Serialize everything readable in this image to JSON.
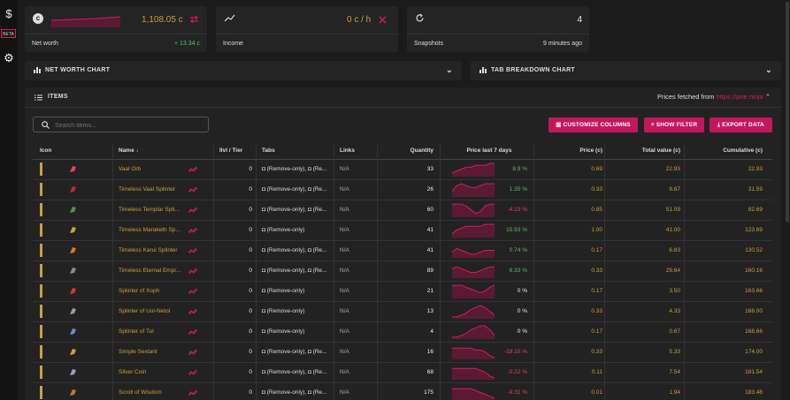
{
  "sidebar": {
    "dollar_icon": "$",
    "badge": "BETA",
    "gear_icon": "⚙"
  },
  "networth": {
    "value": "1,108.05 c",
    "label": "Net worth",
    "delta": "+ 13.34 c",
    "coin": "c"
  },
  "income": {
    "value": "0 c / h",
    "label": "Income"
  },
  "snapshots": {
    "value": "4",
    "label": "Snapshots",
    "time": "9 minutes ago"
  },
  "panels": {
    "networth_chart": "NET WORTH CHART",
    "tab_chart": "TAB BREAKDOWN CHART"
  },
  "items": {
    "title": "ITEMS",
    "prices_prefix": "Prices fetched from",
    "prices_link": "https://poe.ninja",
    "search_placeholder": "Search items...",
    "buttons": {
      "customize": "CUSTOMIZE COLUMNS",
      "filter": "SHOW FILTER",
      "export": "EXPORT DATA"
    },
    "columns": [
      "Icon",
      "Name ↓",
      "Ilvl / Tier",
      "Tabs",
      "Links",
      "Quantity",
      "Price last 7 days",
      "Price (c)",
      "Total value (c)",
      "Cumulative (c)"
    ],
    "rows": [
      {
        "name": "Vaal Orb",
        "ilvl": "0",
        "tabs": "◘ (Remove-only), ◘ (Re...",
        "links": "N/A",
        "qty": "33",
        "pct": "8.9 %",
        "trend": "up",
        "price": "0.69",
        "total": "22.93",
        "cum": "22.93",
        "icon_color": "#e04a4a",
        "spark": [
          2,
          3,
          4,
          5,
          5,
          6,
          6,
          6,
          7,
          7
        ]
      },
      {
        "name": "Timeless Vaal Splinter",
        "ilvl": "0",
        "tabs": "◘ (Remove-only), ◘ (Re...",
        "links": "N/A",
        "qty": "26",
        "pct": "1.35 %",
        "trend": "up",
        "price": "0.33",
        "total": "8.67",
        "cum": "31.59",
        "icon_color": "#b03030",
        "spark": [
          3,
          6,
          7,
          6,
          5,
          5,
          6,
          7,
          7,
          7
        ]
      },
      {
        "name": "Timeless Templar Splint...",
        "ilvl": "0",
        "tabs": "◘ (Remove-only), ◘ (Re...",
        "links": "N/A",
        "qty": "60",
        "pct": "-4.13 %",
        "trend": "down",
        "price": "0.85",
        "total": "51.09",
        "cum": "82.69",
        "icon_color": "#4a9a3a",
        "spark": [
          7,
          7,
          7,
          6,
          4,
          2,
          3,
          6,
          7,
          7
        ]
      },
      {
        "name": "Timeless Maraketh Splin...",
        "ilvl": "0",
        "tabs": "◘ (Remove-only)",
        "links": "N/A",
        "qty": "41",
        "pct": "15.93 %",
        "trend": "up",
        "price": "1.00",
        "total": "41.00",
        "cum": "123.69",
        "icon_color": "#c9a13a",
        "spark": [
          2,
          4,
          5,
          6,
          6,
          6,
          6,
          7,
          7,
          7
        ]
      },
      {
        "name": "Timeless Karui Splinter",
        "ilvl": "0",
        "tabs": "◘ (Remove-only), ◘ (Re...",
        "links": "N/A",
        "qty": "41",
        "pct": "0.74 %",
        "trend": "up",
        "price": "0.17",
        "total": "6.83",
        "cum": "130.52",
        "icon_color": "#d47a20",
        "spark": [
          3,
          5,
          4,
          3,
          2,
          2,
          3,
          4,
          4,
          4
        ]
      },
      {
        "name": "Timeless Eternal Empire...",
        "ilvl": "0",
        "tabs": "◘ (Remove-only), ◘ (Re...",
        "links": "N/A",
        "qty": "89",
        "pct": "6.33 %",
        "trend": "up",
        "price": "0.33",
        "total": "29.64",
        "cum": "160.16",
        "icon_color": "#8a8a8a",
        "spark": [
          5,
          6,
          5,
          4,
          3,
          3,
          4,
          5,
          6,
          6
        ]
      },
      {
        "name": "Splinter of Xoph",
        "ilvl": "0",
        "tabs": "◘ (Remove-only)",
        "links": "N/A",
        "qty": "21",
        "pct": "0 %",
        "trend": "flat",
        "price": "0.17",
        "total": "3.50",
        "cum": "163.66",
        "icon_color": "#d03a2a",
        "spark": [
          7,
          7,
          7,
          6,
          5,
          4,
          3,
          4,
          6,
          7
        ]
      },
      {
        "name": "Splinter of Uul-Netol",
        "ilvl": "0",
        "tabs": "◘ (Remove-only)",
        "links": "N/A",
        "qty": "13",
        "pct": "0 %",
        "trend": "flat",
        "price": "0.33",
        "total": "4.33",
        "cum": "168.00",
        "icon_color": "#9a9a9a",
        "spark": [
          1,
          1,
          2,
          3,
          5,
          6,
          7,
          6,
          4,
          2
        ]
      },
      {
        "name": "Splinter of Tul",
        "ilvl": "0",
        "tabs": "◘ (Remove-only)",
        "links": "N/A",
        "qty": "4",
        "pct": "0 %",
        "trend": "flat",
        "price": "0.17",
        "total": "0.67",
        "cum": "168.66",
        "icon_color": "#6a8ad0",
        "spark": [
          1,
          1,
          2,
          3,
          5,
          6,
          7,
          7,
          5,
          2
        ]
      },
      {
        "name": "Simple Sextant",
        "ilvl": "0",
        "tabs": "◘ (Remove-only), ◘ (Re...",
        "links": "N/A",
        "qty": "16",
        "pct": "-18.15 %",
        "trend": "down",
        "price": "0.33",
        "total": "5.33",
        "cum": "174.00",
        "icon_color": "#c9a13a",
        "spark": [
          6,
          6,
          6,
          6,
          6,
          5,
          5,
          4,
          2,
          1
        ]
      },
      {
        "name": "Silver Coin",
        "ilvl": "0",
        "tabs": "◘ (Remove-only), ◘ (Re...",
        "links": "N/A",
        "qty": "68",
        "pct": "-0.22 %",
        "trend": "down",
        "price": "0.11",
        "total": "7.54",
        "cum": "181.54",
        "icon_color": "#9aa0c0",
        "spark": [
          6,
          6,
          6,
          6,
          6,
          6,
          5,
          4,
          2,
          1
        ]
      },
      {
        "name": "Scroll of Wisdom",
        "ilvl": "0",
        "tabs": "◘ (Remove-only), ◘ (Re...",
        "links": "N/A",
        "qty": "175",
        "pct": "-9.31 %",
        "trend": "down",
        "price": "0.01",
        "total": "1.94",
        "cum": "183.48",
        "icon_color": "#c07a3a",
        "spark": [
          6,
          6,
          6,
          6,
          6,
          5,
          4,
          3,
          2,
          1
        ]
      }
    ]
  }
}
